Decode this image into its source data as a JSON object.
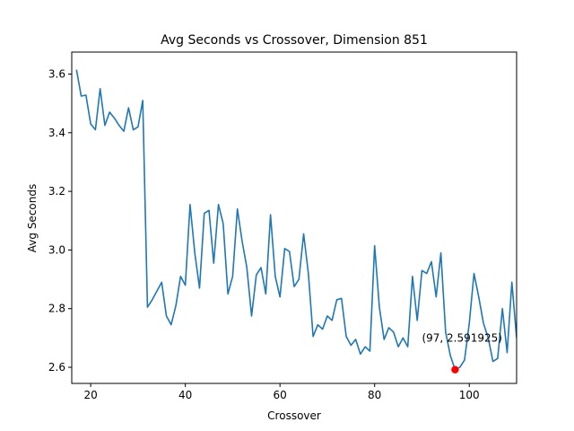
{
  "chart_data": {
    "type": "line",
    "title": "Avg Seconds vs Crossover, Dimension 851",
    "xlabel": "Crossover",
    "ylabel": "Avg Seconds",
    "xlim": [
      16,
      110
    ],
    "ylim": [
      2.545,
      3.675
    ],
    "xticks": [
      20,
      40,
      60,
      80,
      100
    ],
    "yticks": [
      2.6,
      2.8,
      3.0,
      3.2,
      3.4,
      3.6
    ],
    "xtick_labels": [
      "20",
      "40",
      "60",
      "80",
      "100"
    ],
    "ytick_labels": [
      "2.6",
      "2.8",
      "3.0",
      "3.2",
      "3.4",
      "3.6"
    ],
    "grid": false,
    "series": [
      {
        "color": "#1f77b4",
        "x": [
          17,
          18,
          19,
          20,
          21,
          22,
          23,
          24,
          25,
          26,
          27,
          28,
          29,
          30,
          31,
          32,
          33,
          34,
          35,
          36,
          37,
          38,
          39,
          40,
          41,
          42,
          43,
          44,
          45,
          46,
          47,
          48,
          49,
          50,
          51,
          52,
          53,
          54,
          55,
          56,
          57,
          58,
          59,
          60,
          61,
          62,
          63,
          64,
          65,
          66,
          67,
          68,
          69,
          70,
          71,
          72,
          73,
          74,
          75,
          76,
          77,
          78,
          79,
          80,
          81,
          82,
          83,
          84,
          85,
          86,
          87,
          88,
          89,
          90,
          91,
          92,
          93,
          94,
          95,
          96,
          97,
          98,
          99,
          100,
          101,
          102,
          103,
          104,
          105,
          106,
          107,
          108,
          109,
          110
        ],
        "y": [
          3.615,
          3.525,
          3.528,
          3.43,
          3.41,
          3.55,
          3.425,
          3.47,
          3.45,
          3.425,
          3.405,
          3.485,
          3.41,
          3.42,
          3.51,
          2.805,
          2.83,
          2.86,
          2.89,
          2.775,
          2.745,
          2.81,
          2.91,
          2.88,
          3.155,
          2.99,
          2.87,
          3.125,
          3.135,
          2.955,
          3.155,
          3.09,
          2.85,
          2.91,
          3.14,
          3.03,
          2.94,
          2.775,
          2.915,
          2.94,
          2.85,
          3.12,
          2.91,
          2.84,
          3.005,
          2.995,
          2.875,
          2.9,
          3.055,
          2.92,
          2.705,
          2.745,
          2.73,
          2.775,
          2.76,
          2.83,
          2.835,
          2.705,
          2.675,
          2.695,
          2.645,
          2.67,
          2.655,
          3.015,
          2.805,
          2.695,
          2.735,
          2.72,
          2.67,
          2.7,
          2.67,
          2.91,
          2.76,
          2.93,
          2.92,
          2.96,
          2.84,
          2.99,
          2.72,
          2.64,
          2.591925,
          2.6,
          2.625,
          2.75,
          2.92,
          2.84,
          2.75,
          2.7,
          2.62,
          2.63,
          2.8,
          2.65,
          2.89,
          2.7
        ]
      }
    ],
    "highlight_point": {
      "x": 97,
      "y": 2.591925,
      "color": "#ff0000"
    },
    "annotation": {
      "text": "(97, 2.591925)",
      "x": 90,
      "y": 2.7
    }
  }
}
